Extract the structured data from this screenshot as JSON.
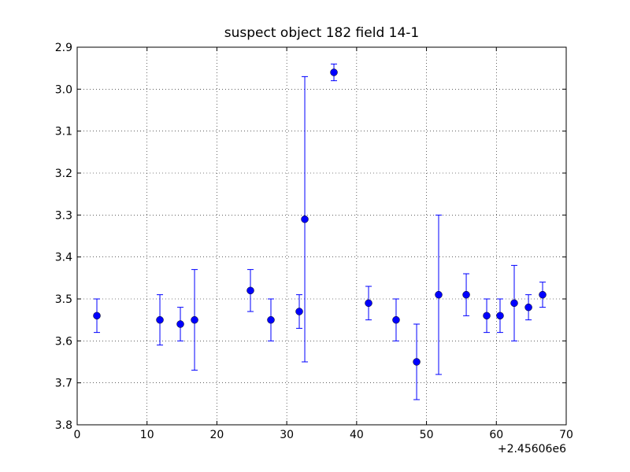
{
  "chart_data": {
    "type": "errorbar",
    "title": "suspect object 182 field 14-1",
    "x_offset_label": "+2.45606e6",
    "x": [
      2.82,
      11.84,
      14.77,
      16.8,
      24.8,
      27.73,
      31.79,
      32.58,
      36.75,
      41.71,
      45.65,
      48.59,
      51.74,
      55.69,
      58.62,
      60.53,
      62.56,
      64.6,
      66.62
    ],
    "values": [
      3.54,
      3.55,
      3.56,
      3.55,
      3.48,
      3.55,
      3.53,
      3.31,
      2.96,
      3.51,
      3.55,
      3.65,
      3.49,
      3.49,
      3.54,
      3.54,
      3.51,
      3.52,
      3.49
    ],
    "errors": [
      0.04,
      0.06,
      0.04,
      0.12,
      0.05,
      0.05,
      0.04,
      0.34,
      0.02,
      0.04,
      0.05,
      0.09,
      0.19,
      0.05,
      0.04,
      0.04,
      0.09,
      0.03,
      0.03
    ],
    "color": "#0000ff",
    "xlim": [
      0,
      70
    ],
    "xticks": [
      0,
      10,
      20,
      30,
      40,
      50,
      60,
      70
    ],
    "ylim": [
      2.9,
      3.8
    ],
    "y_inverted": true,
    "yticks": [
      2.9,
      {
        "value": 3,
        "label": "3.0"
      },
      3.1,
      3.2,
      3.3,
      3.4,
      3.5,
      3.6,
      3.7,
      3.8
    ],
    "grid": true
  }
}
